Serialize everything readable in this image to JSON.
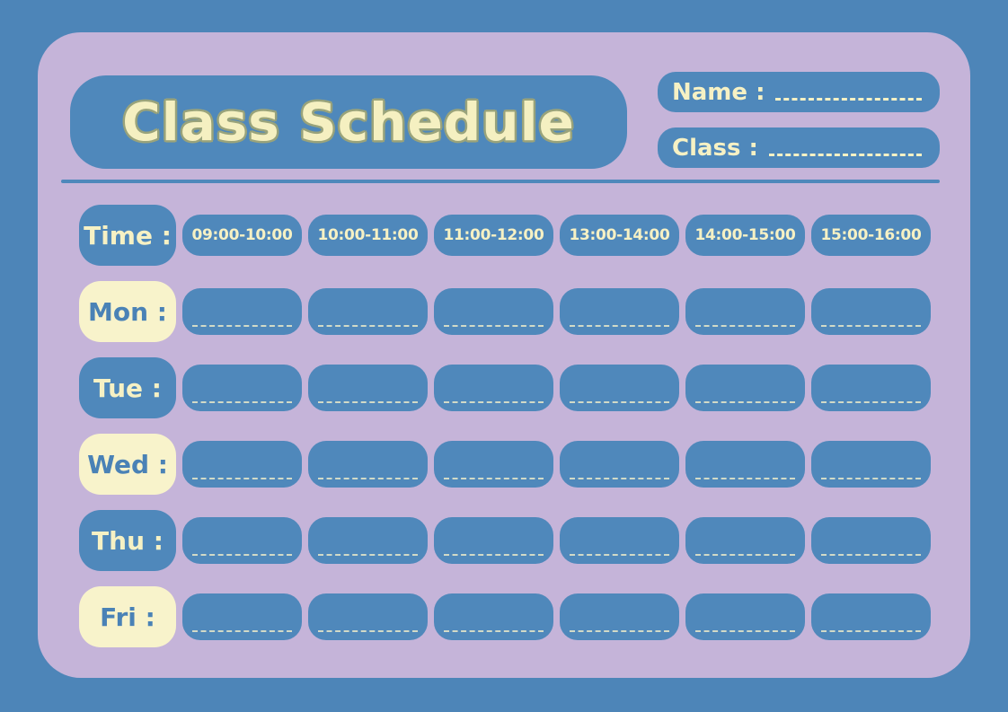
{
  "poster": {
    "title": "Class Schedule",
    "name_field_label": "Name :",
    "class_field_label": "Class :"
  },
  "schedule": {
    "time_header": "Time :",
    "time_slots": [
      "09:00-10:00",
      "10:00-11:00",
      "11:00-12:00",
      "13:00-14:00",
      "14:00-15:00",
      "15:00-16:00"
    ],
    "days": [
      "Mon :",
      "Tue :",
      "Wed :",
      "Thu :",
      "Fri :"
    ]
  },
  "colors": {
    "background_blue": "#4d85b8",
    "panel_lavender": "#c5b4d9",
    "card_blue": "#4f88bb",
    "cream": "#f8f3cb",
    "title_text_cream": "#f5f0c1",
    "title_outline_olive": "#99a37b",
    "day_text_blue": "#4a82b6"
  }
}
